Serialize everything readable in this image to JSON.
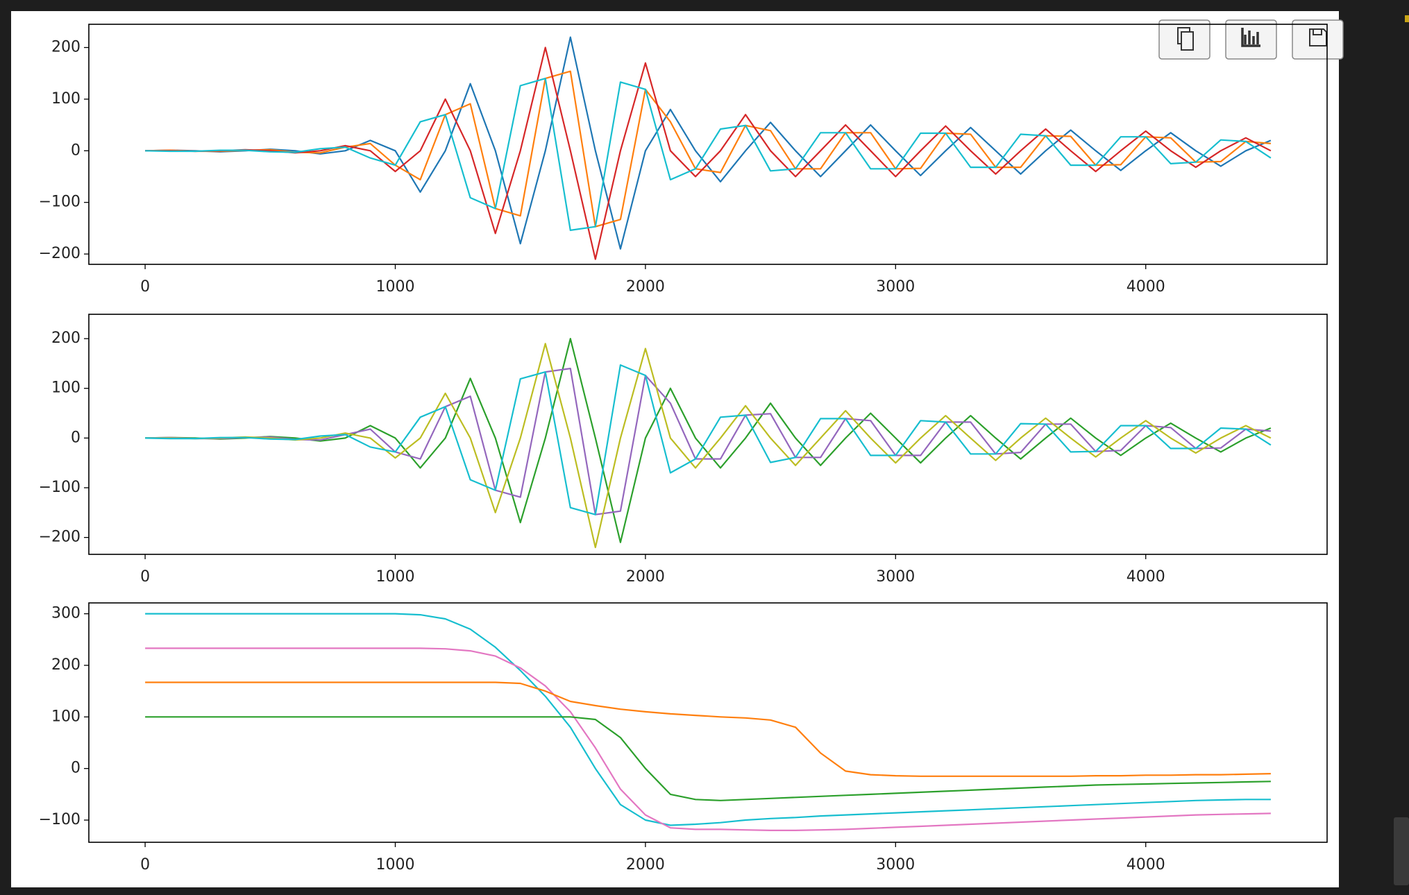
{
  "chart_data": [
    {
      "type": "line",
      "x": [
        0,
        100,
        200,
        300,
        400,
        500,
        600,
        700,
        800,
        900,
        1000,
        1100,
        1200,
        1300,
        1400,
        1500,
        1600,
        1700,
        1800,
        1900,
        2000,
        2100,
        2200,
        2300,
        2400,
        2500,
        2600,
        2700,
        2800,
        2900,
        3000,
        3100,
        3200,
        3300,
        3400,
        3500,
        3600,
        3700,
        3800,
        3900,
        4000,
        4100,
        4200,
        4300,
        4400,
        4500
      ],
      "xlim": [
        -225,
        4725
      ],
      "xticks": [
        0,
        1000,
        2000,
        3000,
        4000
      ],
      "ylim": [
        -220,
        245
      ],
      "yticks": [
        {
          "value": -200,
          "label": "−200"
        },
        {
          "value": -100,
          "label": "−100"
        },
        0,
        100,
        200
      ],
      "series": [
        {
          "color": "#1f77b4",
          "values": [
            0,
            1,
            0,
            -2,
            0,
            3,
            0,
            -6,
            0,
            20,
            0,
            -80,
            0,
            130,
            0,
            -180,
            0,
            220,
            0,
            -190,
            0,
            80,
            0,
            -60,
            0,
            55,
            0,
            -50,
            0,
            50,
            0,
            -48,
            0,
            45,
            0,
            -45,
            0,
            40,
            0,
            -38,
            0,
            35,
            0,
            -30,
            0,
            20
          ]
        },
        {
          "color": "#ff7f0e",
          "values": [
            0,
            1,
            -1,
            -1,
            1,
            2,
            -3,
            -4,
            7,
            14,
            -28,
            -56,
            70,
            91,
            -112,
            -126,
            140,
            154,
            -147,
            -133,
            119,
            56,
            -35,
            -42,
            49,
            39,
            -35,
            -35,
            35,
            35,
            -35,
            -34,
            34,
            32,
            -32,
            -32,
            29,
            28,
            -28,
            -27,
            27,
            25,
            -22,
            -21,
            18,
            14
          ]
        },
        {
          "color": "#d62728",
          "values": [
            0,
            0,
            -1,
            0,
            2,
            0,
            -4,
            0,
            10,
            0,
            -40,
            0,
            100,
            0,
            -160,
            0,
            200,
            0,
            -210,
            0,
            170,
            0,
            -50,
            0,
            70,
            0,
            -50,
            0,
            50,
            0,
            -50,
            0,
            48,
            0,
            -45,
            0,
            42,
            0,
            -40,
            0,
            38,
            0,
            -32,
            0,
            25,
            0
          ]
        },
        {
          "color": "#17becf",
          "values": [
            0,
            -1,
            -1,
            1,
            1,
            -2,
            -3,
            4,
            7,
            -14,
            -28,
            56,
            70,
            -91,
            -112,
            126,
            140,
            -154,
            -147,
            133,
            119,
            -56,
            -35,
            42,
            49,
            -39,
            -35,
            35,
            35,
            -35,
            -35,
            34,
            34,
            -32,
            -32,
            32,
            29,
            -28,
            -28,
            27,
            27,
            -25,
            -22,
            21,
            18,
            -14
          ]
        }
      ]
    },
    {
      "type": "line",
      "x": [
        0,
        100,
        200,
        300,
        400,
        500,
        600,
        700,
        800,
        900,
        1000,
        1100,
        1200,
        1300,
        1400,
        1500,
        1600,
        1700,
        1800,
        1900,
        2000,
        2100,
        2200,
        2300,
        2400,
        2500,
        2600,
        2700,
        2800,
        2900,
        3000,
        3100,
        3200,
        3300,
        3400,
        3500,
        3600,
        3700,
        3800,
        3900,
        4000,
        4100,
        4200,
        4300,
        4400,
        4500
      ],
      "xlim": [
        -225,
        4725
      ],
      "xticks": [
        0,
        1000,
        2000,
        3000,
        4000
      ],
      "ylim": [
        -234,
        249
      ],
      "yticks": [
        {
          "value": -200,
          "label": "−200"
        },
        {
          "value": -100,
          "label": "−100"
        },
        0,
        100,
        200
      ],
      "series": [
        {
          "color": "#2ca02c",
          "values": [
            0,
            1,
            0,
            -2,
            0,
            3,
            0,
            -6,
            0,
            25,
            0,
            -60,
            0,
            120,
            0,
            -170,
            0,
            200,
            0,
            -210,
            0,
            100,
            0,
            -60,
            0,
            70,
            0,
            -55,
            0,
            50,
            0,
            -50,
            0,
            45,
            0,
            -42,
            0,
            40,
            0,
            -35,
            0,
            30,
            0,
            -28,
            0,
            20
          ]
        },
        {
          "color": "#9467bd",
          "values": [
            0,
            1,
            -1,
            -1,
            1,
            2,
            -3,
            -4,
            7,
            18,
            -28,
            -42,
            63,
            84,
            -105,
            -119,
            133,
            140,
            -154,
            -147,
            126,
            70,
            -42,
            -42,
            46,
            49,
            -39,
            -39,
            39,
            35,
            -35,
            -35,
            32,
            32,
            -32,
            -29,
            28,
            28,
            -27,
            -25,
            25,
            21,
            -21,
            -20,
            18,
            14
          ]
        },
        {
          "color": "#bcbd22",
          "values": [
            0,
            0,
            -1,
            0,
            2,
            0,
            -4,
            0,
            10,
            0,
            -40,
            0,
            90,
            0,
            -150,
            0,
            190,
            0,
            -220,
            0,
            180,
            0,
            -60,
            0,
            65,
            0,
            -55,
            0,
            55,
            0,
            -50,
            0,
            45,
            0,
            -45,
            0,
            40,
            0,
            -38,
            0,
            35,
            0,
            -30,
            0,
            25,
            0
          ]
        },
        {
          "color": "#17becf",
          "values": [
            0,
            -1,
            -1,
            1,
            1,
            -2,
            -3,
            4,
            7,
            -18,
            -28,
            42,
            63,
            -84,
            -105,
            119,
            133,
            -140,
            -154,
            147,
            126,
            -70,
            -42,
            42,
            46,
            -49,
            -39,
            39,
            39,
            -35,
            -35,
            35,
            32,
            -32,
            -32,
            29,
            28,
            -28,
            -27,
            25,
            25,
            -21,
            -21,
            20,
            18,
            -14
          ]
        }
      ]
    },
    {
      "type": "line",
      "x": [
        0,
        100,
        200,
        300,
        400,
        500,
        600,
        700,
        800,
        900,
        1000,
        1100,
        1200,
        1300,
        1400,
        1500,
        1600,
        1700,
        1800,
        1900,
        2000,
        2100,
        2200,
        2300,
        2400,
        2500,
        2600,
        2700,
        2800,
        2900,
        3000,
        3100,
        3200,
        3300,
        3400,
        3500,
        3600,
        3700,
        3800,
        3900,
        4000,
        4100,
        4200,
        4300,
        4400,
        4500
      ],
      "xlim": [
        -225,
        4725
      ],
      "xticks": [
        0,
        1000,
        2000,
        3000,
        4000
      ],
      "ylim": [
        -143,
        321
      ],
      "yticks": [
        {
          "value": -100,
          "label": "−100"
        },
        0,
        100,
        200,
        300
      ],
      "series": [
        {
          "color": "#17becf",
          "values": [
            300,
            300,
            300,
            300,
            300,
            300,
            300,
            300,
            300,
            300,
            300,
            298,
            290,
            270,
            235,
            190,
            140,
            80,
            0,
            -70,
            -100,
            -110,
            -108,
            -105,
            -100,
            -97,
            -95,
            -92,
            -90,
            -88,
            -86,
            -84,
            -82,
            -80,
            -78,
            -76,
            -74,
            -72,
            -70,
            -68,
            -66,
            -64,
            -62,
            -61,
            -60,
            -60
          ]
        },
        {
          "color": "#e377c2",
          "values": [
            233,
            233,
            233,
            233,
            233,
            233,
            233,
            233,
            233,
            233,
            233,
            233,
            232,
            228,
            218,
            195,
            160,
            110,
            40,
            -40,
            -90,
            -115,
            -118,
            -118,
            -119,
            -120,
            -120,
            -119,
            -118,
            -116,
            -114,
            -112,
            -110,
            -108,
            -106,
            -104,
            -102,
            -100,
            -98,
            -96,
            -94,
            -92,
            -90,
            -89,
            -88,
            -87
          ]
        },
        {
          "color": "#ff7f0e",
          "values": [
            167,
            167,
            167,
            167,
            167,
            167,
            167,
            167,
            167,
            167,
            167,
            167,
            167,
            167,
            167,
            165,
            150,
            130,
            122,
            115,
            110,
            106,
            103,
            100,
            98,
            94,
            80,
            30,
            -5,
            -12,
            -14,
            -15,
            -15,
            -15,
            -15,
            -15,
            -15,
            -15,
            -14,
            -14,
            -13,
            -13,
            -12,
            -12,
            -11,
            -10
          ]
        },
        {
          "color": "#2ca02c",
          "values": [
            100,
            100,
            100,
            100,
            100,
            100,
            100,
            100,
            100,
            100,
            100,
            100,
            100,
            100,
            100,
            100,
            100,
            100,
            95,
            60,
            0,
            -50,
            -60,
            -62,
            -60,
            -58,
            -56,
            -54,
            -52,
            -50,
            -48,
            -46,
            -44,
            -42,
            -40,
            -38,
            -36,
            -34,
            -32,
            -31,
            -30,
            -29,
            -28,
            -27,
            -26,
            -25
          ]
        }
      ]
    }
  ]
}
